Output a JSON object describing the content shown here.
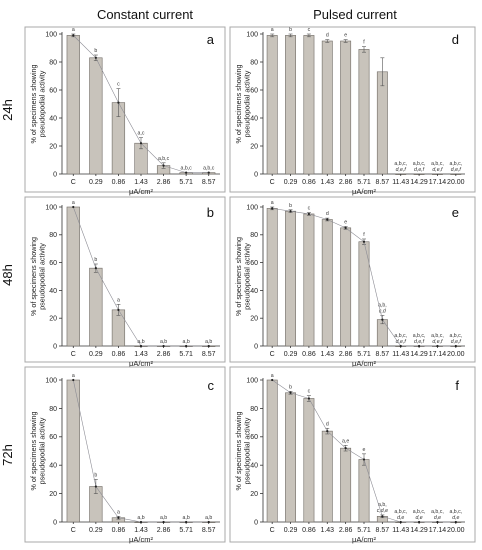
{
  "column_titles": [
    "Constant current",
    "Pulsed current"
  ],
  "row_labels": [
    "24h",
    "48h",
    "72h"
  ],
  "colors": {
    "bar": "#c8c3bb",
    "bar_edge": "#6f6a64",
    "trend": "#8c8c94",
    "frame": "#a8a8a8"
  },
  "chart_data": [
    {
      "type": "bar",
      "panel": "a",
      "row": "24h",
      "column": "Constant current",
      "categories": [
        "C",
        "0.29",
        "0.86",
        "1.43",
        "2.86",
        "5.71",
        "8.57"
      ],
      "values": [
        99,
        83,
        51,
        22,
        6,
        1,
        1
      ],
      "errors": [
        1,
        2,
        10,
        4,
        2,
        0,
        0
      ],
      "annotations": [
        [
          "a"
        ],
        [
          "b"
        ],
        [
          "c"
        ],
        [
          "a,c"
        ],
        [
          "a,b,c"
        ],
        [
          "a,b,c"
        ],
        [
          "a,b,c"
        ]
      ],
      "ylim": [
        0,
        100
      ],
      "yticks": [
        0,
        20,
        40,
        60,
        80,
        100
      ],
      "xlabel": "μA/cm²",
      "ylabel": "% of specimens showing pseudopodial activity",
      "grid": false,
      "trend_line": true
    },
    {
      "type": "bar",
      "panel": "d",
      "row": "24h",
      "column": "Pulsed current",
      "categories": [
        "C",
        "0.29",
        "0.86",
        "1.43",
        "2.86",
        "5.71",
        "8.57",
        "11.43",
        "14.29",
        "17.14",
        "20.00"
      ],
      "values": [
        99,
        99,
        99,
        95,
        95,
        89,
        73,
        0,
        0,
        0,
        0
      ],
      "errors": [
        1,
        1,
        1,
        1,
        1,
        2,
        10,
        0,
        0,
        0,
        0
      ],
      "annotations": [
        [
          "a"
        ],
        [
          "b"
        ],
        [
          "c"
        ],
        [
          "d"
        ],
        [
          "e"
        ],
        [
          "f"
        ],
        [
          ""
        ],
        [
          "a,b,c,",
          "d,e,f"
        ],
        [
          "a,b,c,",
          "d,e,f"
        ],
        [
          "a,b,c,",
          "d,e,f"
        ],
        [
          "a,b,c,",
          "d,e,f"
        ]
      ],
      "ylim": [
        0,
        100
      ],
      "yticks": [
        0,
        20,
        40,
        60,
        80,
        100
      ],
      "xlabel": "μA/cm²",
      "ylabel": "% of specimens showing pseudopodial activity",
      "grid": false,
      "trend_line": false
    },
    {
      "type": "bar",
      "panel": "b",
      "row": "48h",
      "column": "Constant current",
      "categories": [
        "C",
        "0.29",
        "0.86",
        "1.43",
        "2.86",
        "5.71",
        "8.57"
      ],
      "values": [
        100,
        56,
        26,
        0,
        0,
        0,
        0
      ],
      "errors": [
        0,
        3,
        4,
        0,
        0,
        0,
        0
      ],
      "annotations": [
        [
          "a"
        ],
        [
          "b"
        ],
        [
          "a"
        ],
        [
          "a,b"
        ],
        [
          "a,b"
        ],
        [
          "a,b"
        ],
        [
          "a,b"
        ]
      ],
      "ylim": [
        0,
        100
      ],
      "yticks": [
        0,
        20,
        40,
        60,
        80,
        100
      ],
      "xlabel": "μA/cm²",
      "ylabel": "% of specimens showing pseudopodial activity",
      "grid": false,
      "trend_line": true
    },
    {
      "type": "bar",
      "panel": "e",
      "row": "48h",
      "column": "Pulsed current",
      "categories": [
        "C",
        "0.29",
        "0.86",
        "1.43",
        "2.86",
        "5.71",
        "8.57",
        "11.43",
        "14.29",
        "17.14",
        "20.00"
      ],
      "values": [
        99,
        97,
        95,
        91,
        85,
        75,
        19,
        0,
        0,
        0,
        0
      ],
      "errors": [
        1,
        1,
        1,
        1,
        1,
        2,
        3,
        0,
        0,
        0,
        0
      ],
      "annotations": [
        [
          "a"
        ],
        [
          "b"
        ],
        [
          "c"
        ],
        [
          "d"
        ],
        [
          "e"
        ],
        [
          "f"
        ],
        [
          "a,b,",
          "c,d"
        ],
        [
          "a,b,c,",
          "d,e,f"
        ],
        [
          "a,b,c,",
          "d,e,f"
        ],
        [
          "a,b,c,",
          "d,e,f"
        ],
        [
          "a,b,c,",
          "d,e,f"
        ]
      ],
      "ylim": [
        0,
        100
      ],
      "yticks": [
        0,
        20,
        40,
        60,
        80,
        100
      ],
      "xlabel": "μA/cm²",
      "ylabel": "% of specimens showing pseudopodial activity",
      "grid": false,
      "trend_line": true
    },
    {
      "type": "bar",
      "panel": "c",
      "row": "72h",
      "column": "Constant current",
      "categories": [
        "C",
        "0.29",
        "0.86",
        "1.43",
        "2.86",
        "5.71",
        "8.57"
      ],
      "values": [
        100,
        25,
        3,
        0,
        0,
        0,
        0
      ],
      "errors": [
        0,
        5,
        1,
        0,
        0,
        0,
        0
      ],
      "annotations": [
        [
          "a"
        ],
        [
          "b"
        ],
        [
          "a"
        ],
        [
          "a,b"
        ],
        [
          "a,b"
        ],
        [
          "a,b"
        ],
        [
          "a,b"
        ]
      ],
      "ylim": [
        0,
        100
      ],
      "yticks": [
        0,
        20,
        40,
        60,
        80,
        100
      ],
      "xlabel": "μA/cm²",
      "ylabel": "% of specimens showing pseudopodial activity",
      "grid": false,
      "trend_line": true
    },
    {
      "type": "bar",
      "panel": "f",
      "row": "72h",
      "column": "Pulsed current",
      "categories": [
        "C",
        "0.29",
        "0.86",
        "1.43",
        "2.86",
        "5.71",
        "8.57",
        "11.43",
        "14.29",
        "17.14",
        "20.00"
      ],
      "values": [
        100,
        91,
        87,
        64,
        52,
        44,
        4,
        0,
        0,
        0,
        0
      ],
      "errors": [
        0,
        1,
        2,
        2,
        2,
        4,
        1,
        0,
        0,
        0,
        0
      ],
      "annotations": [
        [
          "a"
        ],
        [
          "b"
        ],
        [
          "c"
        ],
        [
          "d"
        ],
        [
          "a,e"
        ],
        [
          "e"
        ],
        [
          "a,b,",
          "c,d,e"
        ],
        [
          "a,b,c,",
          "d,e"
        ],
        [
          "a,b,c,",
          "d,e"
        ],
        [
          "a,b,c,",
          "d,e"
        ],
        [
          "a,b,c,",
          "d,e"
        ]
      ],
      "ylim": [
        0,
        100
      ],
      "yticks": [
        0,
        20,
        40,
        60,
        80,
        100
      ],
      "xlabel": "μA/cm²",
      "ylabel": "% of specimens showing pseudopodial activity",
      "grid": false,
      "trend_line": true
    }
  ]
}
